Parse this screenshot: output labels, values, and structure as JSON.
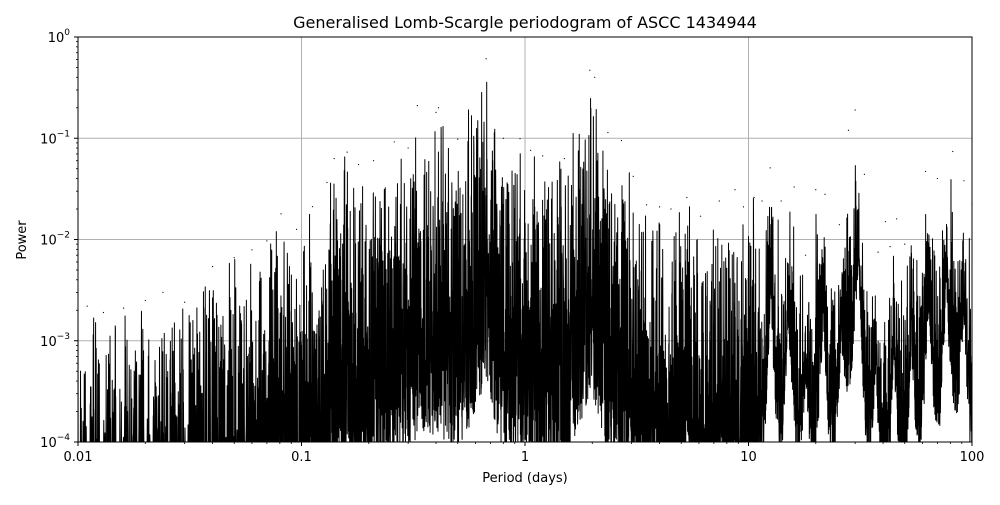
{
  "chart_data": {
    "type": "line",
    "title": "Generalised Lomb-Scargle periodogram of ASCC 1434944",
    "xlabel": "Period (days)",
    "ylabel": "Power",
    "xscale": "log",
    "yscale": "log",
    "xlim": [
      0.01,
      100
    ],
    "ylim": [
      0.0001,
      1
    ],
    "grid": true,
    "x_ticks": [
      {
        "value": 0.01,
        "label": "0.01"
      },
      {
        "value": 0.1,
        "label": "0.1"
      },
      {
        "value": 1,
        "label": "1"
      },
      {
        "value": 10,
        "label": "10"
      },
      {
        "value": 100,
        "label": "100"
      }
    ],
    "y_ticks": [
      {
        "value": 0.0001,
        "base": "10",
        "exp": "−4"
      },
      {
        "value": 0.001,
        "base": "10",
        "exp": "−3"
      },
      {
        "value": 0.01,
        "base": "10",
        "exp": "−2"
      },
      {
        "value": 0.1,
        "base": "10",
        "exp": "−1"
      },
      {
        "value": 1,
        "base": "10",
        "exp": "0"
      }
    ],
    "line_color": "#000000",
    "grid_color": "#b0b0b0",
    "series": [
      {
        "name": "",
        "points": [
          [
            0.011,
            0.0022
          ],
          [
            0.013,
            0.0019
          ],
          [
            0.016,
            0.0021
          ],
          [
            0.02,
            0.0025
          ],
          [
            0.024,
            0.003
          ],
          [
            0.03,
            0.0024
          ],
          [
            0.04,
            0.0054
          ],
          [
            0.05,
            0.0066
          ],
          [
            0.06,
            0.0079
          ],
          [
            0.07,
            0.0097
          ],
          [
            0.081,
            0.0179
          ],
          [
            0.095,
            0.0126
          ],
          [
            0.112,
            0.0211
          ],
          [
            0.13,
            0.0366
          ],
          [
            0.14,
            0.063
          ],
          [
            0.16,
            0.073
          ],
          [
            0.18,
            0.055
          ],
          [
            0.21,
            0.06
          ],
          [
            0.26,
            0.092
          ],
          [
            0.3,
            0.08
          ],
          [
            0.33,
            0.21
          ],
          [
            0.4,
            0.18
          ],
          [
            0.41,
            0.2
          ],
          [
            0.5,
            0.098
          ],
          [
            0.67,
            0.61
          ],
          [
            0.8,
            0.1
          ],
          [
            0.95,
            0.099
          ],
          [
            1.06,
            0.076
          ],
          [
            1.2,
            0.067
          ],
          [
            1.5,
            0.063
          ],
          [
            1.95,
            0.47
          ],
          [
            2.05,
            0.4
          ],
          [
            2.35,
            0.114
          ],
          [
            2.7,
            0.095
          ],
          [
            3.05,
            0.042
          ],
          [
            3.5,
            0.022
          ],
          [
            4.0,
            0.021
          ],
          [
            4.5,
            0.02
          ],
          [
            5.3,
            0.026
          ],
          [
            6.1,
            0.017
          ],
          [
            7.4,
            0.024
          ],
          [
            8.7,
            0.031
          ],
          [
            9.5,
            0.021
          ],
          [
            10.6,
            0.026
          ],
          [
            11.5,
            0.024
          ],
          [
            12.5,
            0.051
          ],
          [
            14.0,
            0.024
          ],
          [
            16.0,
            0.033
          ],
          [
            18.0,
            0.007
          ],
          [
            20.0,
            0.031
          ],
          [
            22.0,
            0.028
          ],
          [
            25.5,
            0.014
          ],
          [
            28.0,
            0.12
          ],
          [
            30.0,
            0.19
          ],
          [
            33.0,
            0.044
          ],
          [
            38.0,
            0.0075
          ],
          [
            41.0,
            0.015
          ],
          [
            43.0,
            0.0085
          ],
          [
            46.0,
            0.016
          ],
          [
            50.0,
            0.009
          ],
          [
            62.0,
            0.047
          ],
          [
            70.0,
            0.04
          ],
          [
            82.0,
            0.074
          ],
          [
            92.0,
            0.038
          ],
          [
            100.0,
            0.022
          ]
        ]
      }
    ]
  }
}
